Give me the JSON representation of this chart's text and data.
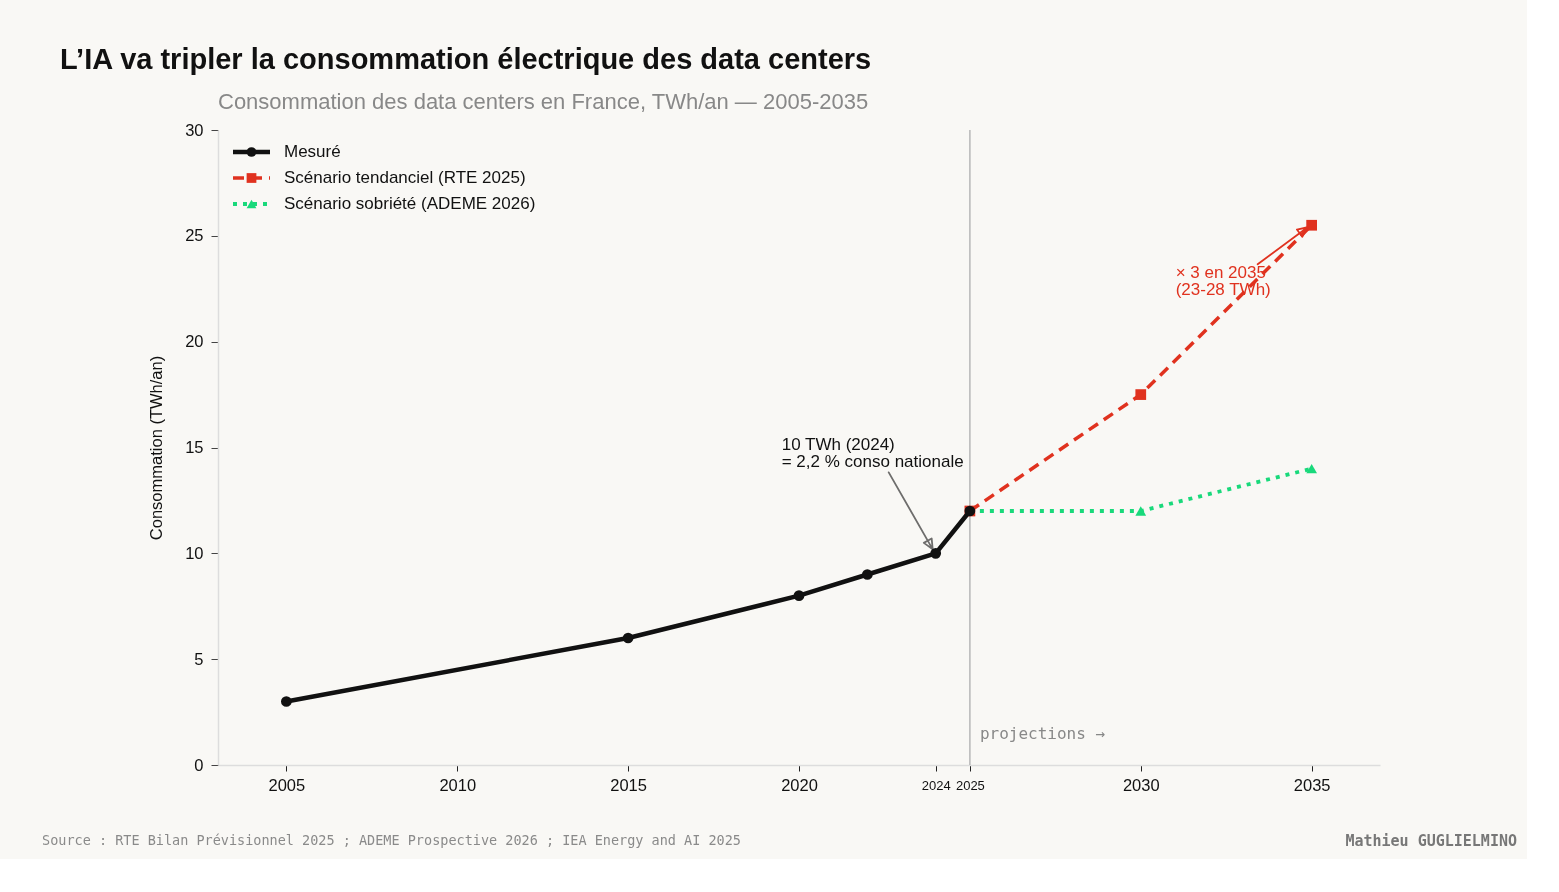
{
  "chart_data": {
    "type": "line",
    "title": "L’IA va tripler la consommation électrique des data centers",
    "subtitle": "Consommation des data centers en France, TWh/an — 2005-2035",
    "ylabel": "Consommation (TWh/an)",
    "xlim": [
      2003,
      2037
    ],
    "xticks": [
      2005,
      2010,
      2015,
      2020,
      2024,
      2025,
      2030,
      2035
    ],
    "ylim": [
      0,
      30
    ],
    "yticks": [
      0,
      5,
      10,
      15,
      20,
      25,
      30
    ],
    "grid": false,
    "legend": "top left",
    "series": [
      {
        "name": "Mesuré",
        "color": "#111111",
        "x": [
          2005,
          2015,
          2020,
          2022,
          2024,
          2025
        ],
        "values": [
          3,
          6,
          8,
          9,
          10,
          12
        ],
        "marker": "circle",
        "line_style": "solid"
      },
      {
        "name": "Scénario tendanciel (RTE 2025)",
        "color": "#e0321f",
        "x": [
          2025,
          2030,
          2035
        ],
        "values": [
          12,
          17.5,
          25.5
        ],
        "marker": "square",
        "line_style": "dashed"
      },
      {
        "name": "Scénario sobriété (ADEME 2026)",
        "color": "#19d97b",
        "x": [
          2025,
          2030,
          2035
        ],
        "values": [
          12,
          12,
          14
        ],
        "marker": "triangle",
        "line_style": "dotted"
      }
    ],
    "ref_lines": [
      {
        "axis": "x",
        "value": 2025,
        "label": "projections →",
        "color": "#bbbbbb"
      }
    ],
    "annotations": [
      {
        "text": "10 TWh (2024)\n= 2,2 % conso nationale",
        "x": 2024,
        "y": 10
      },
      {
        "text": "× 3 en 2035\n(23-28 TWh)",
        "x": 2035,
        "y": 25.5
      },
      "Source : RTE Bilan Prévisionnel 2025 ; ADEME Prospective 2026 ; IEA Energy and AI 2025",
      "Mathieu GUGLIELMINO"
    ]
  }
}
